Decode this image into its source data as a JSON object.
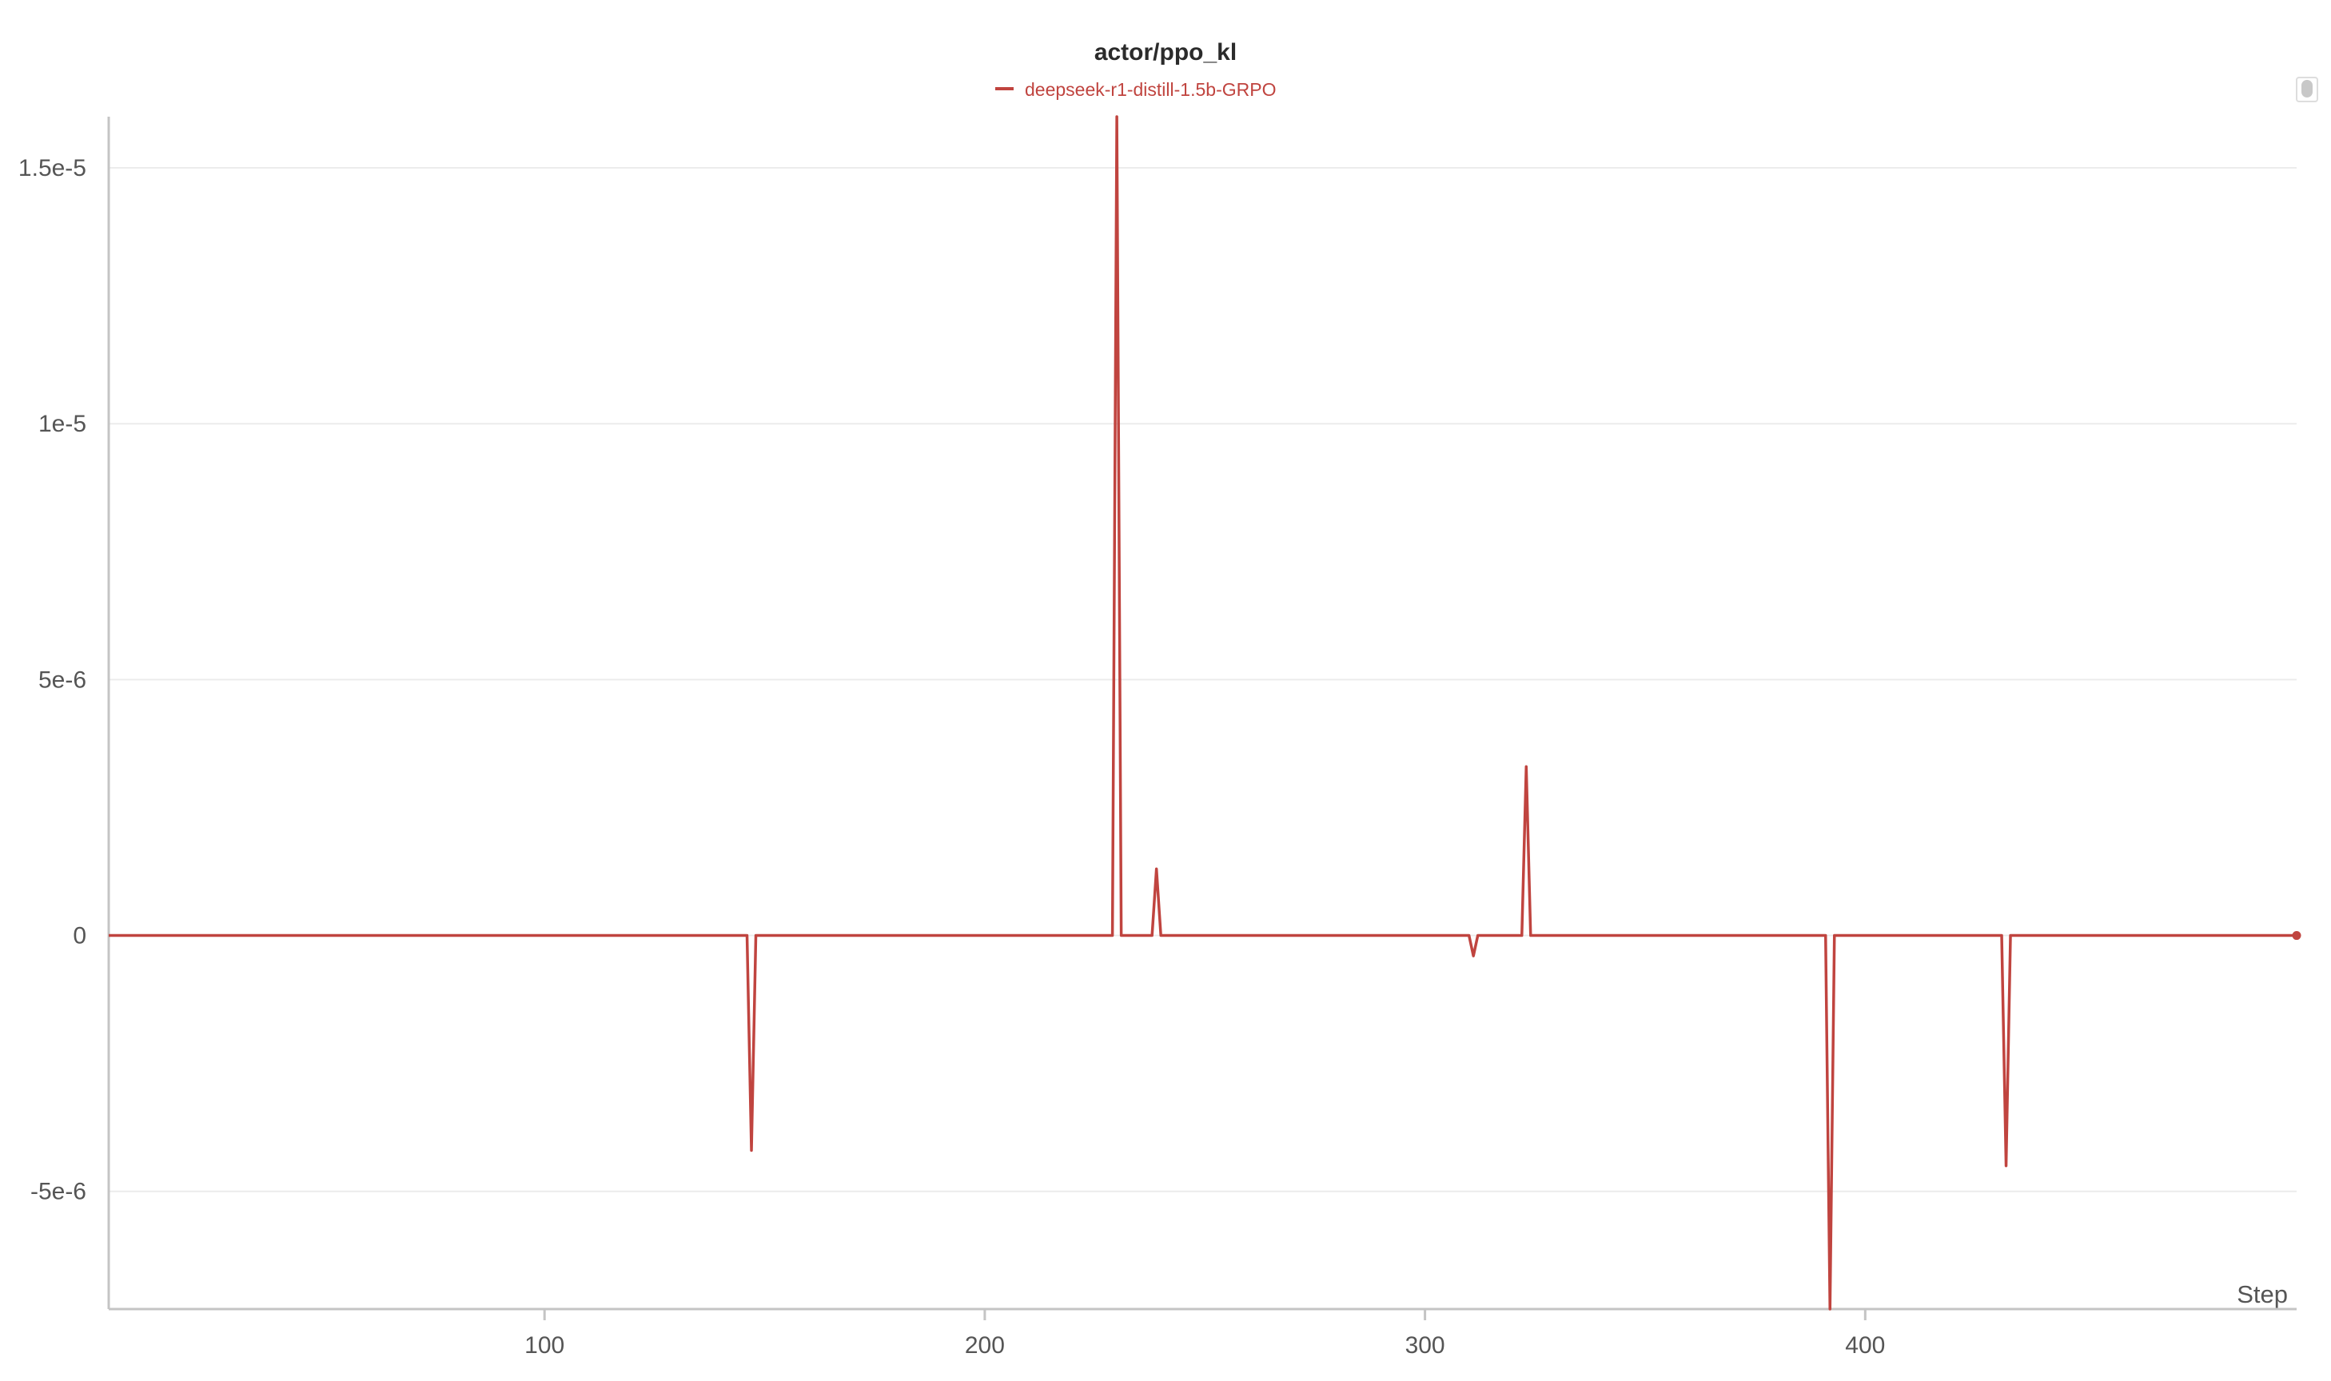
{
  "chart_data": {
    "type": "line",
    "title": "actor/ppo_kl",
    "xlabel": "Step",
    "ylabel": "",
    "xlim": [
      1,
      498
    ],
    "ylim": [
      -7.3e-06,
      1.6e-05
    ],
    "x_ticks": [
      {
        "value": 100,
        "label": "100"
      },
      {
        "value": 200,
        "label": "200"
      },
      {
        "value": 300,
        "label": "300"
      },
      {
        "value": 400,
        "label": "400"
      }
    ],
    "y_ticks": [
      {
        "value": -5e-06,
        "label": "-5e-6"
      },
      {
        "value": 0,
        "label": "0"
      },
      {
        "value": 5e-06,
        "label": "5e-6"
      },
      {
        "value": 1e-05,
        "label": "1e-5"
      },
      {
        "value": 1.5e-05,
        "label": "1.5e-5"
      }
    ],
    "grid": true,
    "legend_position": "top-center",
    "series": [
      {
        "name": "deepseek-r1-distill-1.5b-GRPO",
        "color": "#c0443f",
        "points": [
          [
            1,
            0
          ],
          [
            146,
            0
          ],
          [
            147,
            -4.2e-06
          ],
          [
            148,
            0
          ],
          [
            229,
            0
          ],
          [
            230,
            1.6e-05
          ],
          [
            231,
            0
          ],
          [
            238,
            0
          ],
          [
            239,
            1.3e-06
          ],
          [
            240,
            0
          ],
          [
            310,
            0
          ],
          [
            311,
            -4e-07
          ],
          [
            312,
            0
          ],
          [
            322,
            0
          ],
          [
            323,
            3.3e-06
          ],
          [
            324,
            0
          ],
          [
            391,
            0
          ],
          [
            392,
            -7.3e-06
          ],
          [
            393,
            0
          ],
          [
            431,
            0
          ],
          [
            432,
            -4.5e-06
          ],
          [
            433,
            0
          ],
          [
            498,
            0
          ]
        ]
      }
    ]
  }
}
